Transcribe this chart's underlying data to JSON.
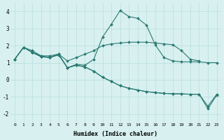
{
  "xlabel": "Humidex (Indice chaleur)",
  "bg_color": "#d8f0f0",
  "grid_color": "#b8dede",
  "line_color": "#2a7a72",
  "xlim": [
    -0.5,
    23.5
  ],
  "ylim": [
    -2.5,
    4.5
  ],
  "xticks": [
    0,
    1,
    2,
    3,
    4,
    5,
    6,
    7,
    8,
    9,
    10,
    11,
    12,
    13,
    14,
    15,
    16,
    17,
    18,
    19,
    20,
    21,
    22,
    23
  ],
  "yticks": [
    -2,
    -1,
    0,
    1,
    2,
    3,
    4
  ],
  "lines": [
    {
      "x": [
        0,
        1,
        2,
        3,
        4,
        5,
        6,
        7,
        8,
        9,
        10,
        11,
        12,
        13,
        14,
        15,
        16,
        17,
        18,
        19,
        20,
        21,
        22,
        23
      ],
      "y": [
        1.2,
        1.9,
        1.7,
        1.4,
        1.4,
        1.5,
        0.7,
        0.9,
        0.85,
        1.2,
        2.5,
        3.25,
        4.05,
        3.7,
        3.6,
        3.2,
        2.05,
        1.3,
        1.1,
        1.05,
        1.05,
        1.05,
        1.0,
        1.0
      ]
    },
    {
      "x": [
        0,
        1,
        2,
        3,
        4,
        5,
        6,
        7,
        8,
        9,
        10,
        11,
        12,
        13,
        14,
        15,
        16,
        17,
        18,
        19,
        20,
        21
      ],
      "y": [
        1.2,
        1.9,
        1.6,
        1.4,
        1.3,
        1.5,
        1.1,
        1.3,
        1.5,
        1.7,
        2.0,
        2.1,
        2.15,
        2.2,
        2.2,
        2.2,
        2.15,
        2.1,
        2.05,
        1.7,
        1.2,
        1.1
      ]
    },
    {
      "x": [
        0,
        1,
        2,
        3,
        4,
        5,
        6,
        7,
        8,
        9,
        10,
        11,
        12,
        13,
        14,
        15,
        16,
        17,
        18,
        19,
        20,
        21,
        22,
        23
      ],
      "y": [
        1.2,
        1.9,
        1.6,
        1.35,
        1.3,
        1.5,
        0.7,
        0.85,
        0.75,
        0.5,
        0.15,
        -0.1,
        -0.35,
        -0.5,
        -0.6,
        -0.7,
        -0.75,
        -0.8,
        -0.82,
        -0.83,
        -0.85,
        -0.85,
        -1.55,
        -0.85
      ]
    },
    {
      "x": [
        0,
        1,
        2,
        3,
        4,
        5,
        6,
        7,
        8,
        9,
        10,
        11,
        12,
        13,
        14,
        15,
        16,
        17,
        18,
        19,
        20,
        21,
        22,
        23
      ],
      "y": [
        1.2,
        1.9,
        1.6,
        1.35,
        1.3,
        1.45,
        0.7,
        0.85,
        0.75,
        0.5,
        0.15,
        -0.1,
        -0.35,
        -0.5,
        -0.6,
        -0.7,
        -0.75,
        -0.8,
        -0.82,
        -0.83,
        -0.85,
        -0.85,
        -1.7,
        -0.9
      ]
    }
  ]
}
